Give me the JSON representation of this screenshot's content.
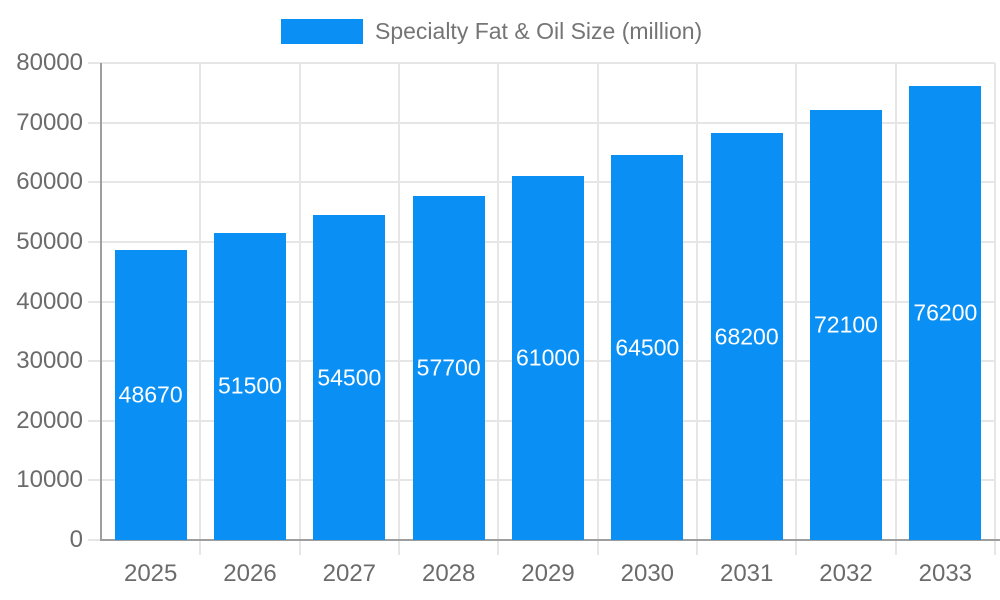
{
  "legend": {
    "label": "Specialty Fat & Oil Size (million)"
  },
  "chart_data": {
    "type": "bar",
    "title": "Specialty Fat & Oil Size (million)",
    "categories": [
      "2025",
      "2026",
      "2027",
      "2028",
      "2029",
      "2030",
      "2031",
      "2032",
      "2033"
    ],
    "values": [
      48670,
      51500,
      54500,
      57700,
      61000,
      64500,
      68200,
      72100,
      76200
    ],
    "xlabel": "",
    "ylabel": "",
    "ylim": [
      0,
      80000
    ],
    "y_tick_step": 10000,
    "y_tick_labels": [
      "0",
      "10000",
      "20000",
      "30000",
      "40000",
      "50000",
      "60000",
      "70000",
      "80000"
    ],
    "grid": true,
    "legend_position": "top",
    "colors": {
      "bar": "#0a90f5",
      "grid": "#e6e6e6",
      "axis": "#9e9e9e",
      "tick_text": "#6b6b6b",
      "legend_text": "#757575",
      "value_label": "#ffffff",
      "background": "#ffffff"
    }
  }
}
